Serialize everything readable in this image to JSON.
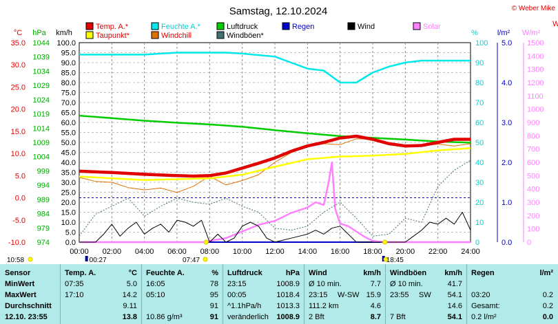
{
  "title": "Samstag, 12.10.2024",
  "brand": "© Weber Mike",
  "legend": [
    {
      "label": "Temp. A.*",
      "color": "#e00000",
      "text_color": "#e00000"
    },
    {
      "label": "Feuchte A.*",
      "color": "#00e8e8",
      "text_color": "#00d0d0"
    },
    {
      "label": "Luftdruck",
      "color": "#00cc00",
      "text_color": "#000000"
    },
    {
      "label": "Regen",
      "color": "#0000cc",
      "text_color": "#0000cc"
    },
    {
      "label": "Wind",
      "color": "#000000",
      "text_color": "#000000"
    },
    {
      "label": "Solar",
      "color": "#ff80ff",
      "text_color": "#ff80ff"
    },
    {
      "label": "Taupunkt*",
      "color": "#ffff00",
      "text_color": "#e00000"
    },
    {
      "label": "Windchill",
      "color": "#e07000",
      "text_color": "#e00000"
    },
    {
      "label": "Windböen*",
      "color": "#407070",
      "text_color": "#000000"
    }
  ],
  "axis_units": {
    "temp": "°C",
    "pressure": "hPa",
    "wind": "km/h",
    "humidity": "%",
    "rain": "l/m²",
    "solar": "W/m²",
    "right_edge": "W"
  },
  "axes": {
    "temp_ticks": [
      "35.0",
      "30.0",
      "25.0",
      "20.0",
      "15.0",
      "10.0",
      "5.0",
      "0.0",
      "-5.0",
      "-10.0"
    ],
    "pressure_ticks": [
      "1044",
      "1039",
      "1034",
      "1029",
      "1024",
      "1019",
      "1014",
      "1009",
      "1004",
      "999",
      "994",
      "989",
      "984",
      "979",
      "974"
    ],
    "wind_ticks": [
      "100.0",
      "95.0",
      "90.0",
      "85.0",
      "80.0",
      "75.0",
      "70.0",
      "65.0",
      "60.0",
      "55.0",
      "50.0",
      "45.0",
      "40.0",
      "35.0",
      "30.0",
      "25.0",
      "20.0",
      "15.0",
      "10.0",
      "5.0",
      "0.0"
    ],
    "humidity_ticks": [
      "100",
      "90",
      "80",
      "70",
      "60",
      "50",
      "40",
      "30",
      "20",
      "10",
      "0"
    ],
    "rain_ticks": [
      "5.0",
      "4.0",
      "3.0",
      "2.0",
      "1.0",
      "0.0"
    ],
    "solar_ticks": [
      "1500",
      "1400",
      "1300",
      "1200",
      "1100",
      "1000",
      "900",
      "800",
      "700",
      "600",
      "500",
      "400",
      "300",
      "200",
      "100",
      "0"
    ],
    "time_ticks": [
      "00:00",
      "02:00",
      "04:00",
      "06:00",
      "08:00",
      "10:00",
      "12:00",
      "14:00",
      "16:00",
      "18:00",
      "20:00",
      "22:00",
      "24:00"
    ]
  },
  "markers": {
    "sunrise": "07:47",
    "sunset": "18:45",
    "moonrise": "00:27",
    "moonset": "10:58"
  },
  "chart_data": {
    "type": "line",
    "x_unit": "hours",
    "xlim": [
      0,
      24
    ],
    "ylim_wind": [
      0,
      100
    ],
    "series": [
      {
        "name": "Temp. A.*",
        "axis": "temp",
        "x": [
          0,
          2,
          4,
          6,
          7,
          8,
          9,
          10,
          11,
          12,
          13,
          14,
          15,
          16,
          17,
          18,
          19,
          20,
          21,
          22,
          23,
          24
        ],
        "values": [
          6.0,
          5.7,
          5.3,
          5.0,
          4.9,
          5.0,
          5.6,
          6.7,
          7.8,
          9.0,
          10.5,
          11.7,
          12.5,
          13.5,
          13.9,
          13.2,
          12.2,
          11.7,
          11.8,
          12.5,
          13.2,
          13.2
        ]
      },
      {
        "name": "Feuchte A.*",
        "axis": "humidity",
        "x": [
          0,
          2,
          4,
          5,
          6,
          8,
          9,
          10,
          12,
          13,
          14,
          15,
          16,
          17,
          18,
          19,
          20,
          21,
          22,
          23,
          24
        ],
        "values": [
          94,
          94,
          94,
          94.5,
          95,
          95,
          95,
          94.5,
          93,
          90,
          87,
          86,
          80,
          80,
          85,
          88,
          90,
          91,
          91,
          91,
          91
        ]
      },
      {
        "name": "Luftdruck",
        "axis": "pressure",
        "x": [
          0,
          2,
          4,
          6,
          8,
          10,
          12,
          14,
          16,
          18,
          20,
          22,
          24
        ],
        "values": [
          1018.4,
          1017.5,
          1016.6,
          1015.9,
          1015.3,
          1014.5,
          1013.3,
          1012.2,
          1011.2,
          1010.6,
          1010.0,
          1009.3,
          1008.9
        ]
      },
      {
        "name": "Taupunkt*",
        "axis": "temp",
        "x": [
          0,
          2,
          4,
          6,
          8,
          10,
          12,
          14,
          16,
          18,
          20,
          22,
          24
        ],
        "values": [
          4.8,
          4.4,
          4.0,
          4.2,
          4.4,
          5.2,
          7.0,
          8.7,
          9.3,
          9.5,
          9.9,
          10.7,
          11.2
        ]
      },
      {
        "name": "Windchill",
        "axis": "temp",
        "x": [
          0,
          1,
          2,
          3,
          4,
          5,
          6,
          7,
          8,
          9,
          10,
          11,
          12,
          13,
          14,
          15,
          16,
          17,
          18,
          19,
          20,
          21,
          22,
          23,
          24
        ],
        "values": [
          4.6,
          3.7,
          3.5,
          2.3,
          1.8,
          2.2,
          1.2,
          2.6,
          4.9,
          2.9,
          3.9,
          5.2,
          8.0,
          10.2,
          11.5,
          12.2,
          12.0,
          13.3,
          13.2,
          12.1,
          11.6,
          11.8,
          12.1,
          11.7,
          12.2
        ]
      },
      {
        "name": "Wind",
        "axis": "wind",
        "x": [
          0,
          1,
          1.5,
          2,
          2.5,
          3,
          3.5,
          4,
          4.5,
          5,
          5.5,
          6,
          6.5,
          7,
          7.5,
          8,
          8.5,
          9,
          9.5,
          10,
          10.5,
          11,
          11.5,
          12,
          12.5,
          13,
          13.5,
          14,
          14.5,
          15,
          15.5,
          16,
          16.5,
          17,
          17.5,
          18,
          18.5,
          19,
          19.5,
          20,
          20.5,
          21,
          21.5,
          22,
          22.5,
          23,
          23.5,
          24
        ],
        "values": [
          0,
          0,
          4,
          9,
          3,
          7,
          10,
          4,
          7,
          9,
          5,
          11,
          10,
          8,
          11,
          0,
          4,
          0,
          2,
          8,
          10,
          8,
          2,
          0,
          1,
          2,
          3,
          4,
          6,
          4,
          7,
          8,
          4,
          0,
          0,
          0,
          0,
          0,
          0,
          0,
          3,
          6,
          10,
          9,
          12,
          9,
          15,
          6
        ]
      },
      {
        "name": "Windböen*",
        "axis": "wind",
        "x": [
          0,
          1,
          2,
          3,
          4,
          5,
          6,
          7,
          8,
          9,
          10,
          11,
          12,
          13,
          14,
          15,
          16,
          17,
          18,
          19,
          20,
          21,
          22,
          23,
          24
        ],
        "values": [
          3,
          14,
          18,
          22,
          13,
          18,
          22,
          20,
          19,
          22,
          18,
          15,
          7,
          6,
          8,
          15,
          20,
          12,
          3,
          4,
          12,
          10,
          28,
          36,
          41
        ]
      },
      {
        "name": "Solar",
        "axis": "solar",
        "x": [
          0,
          7.8,
          8,
          9,
          10,
          11,
          12,
          13,
          14,
          14.5,
          15,
          15.3,
          15.5,
          15.7,
          16,
          16.5,
          17,
          17.5,
          18,
          18.7,
          24
        ],
        "values": [
          0,
          0,
          10,
          30,
          80,
          130,
          160,
          220,
          260,
          300,
          280,
          450,
          600,
          250,
          140,
          120,
          80,
          40,
          10,
          0,
          0
        ]
      },
      {
        "name": "Regen",
        "axis": "rain",
        "x": [
          0,
          24
        ],
        "values": [
          0.0,
          0.0
        ]
      }
    ]
  },
  "stats": {
    "sensor": {
      "header": "Sensor",
      "rows": [
        "MinWert",
        "MaxWert",
        "Durchschnitt",
        "12.10. 23:55"
      ]
    },
    "temp": {
      "header": "Temp. A.",
      "unit": "°C",
      "col1": [
        "07:35",
        "17:10",
        "",
        ""
      ],
      "col2": [
        "5.0",
        "14.2",
        "9.11",
        "13.8"
      ]
    },
    "feuchte": {
      "header": "Feuchte A.",
      "unit": "%",
      "col1": [
        "16:05",
        "05:10",
        "",
        "10.86 g/m³"
      ],
      "col2": [
        "78",
        "95",
        "91",
        "91"
      ]
    },
    "luftdruck": {
      "header": "Luftdruck",
      "unit": "hPa",
      "col1": [
        "23:15",
        "00:05",
        "^1.1hPa/h",
        "veränderlich"
      ],
      "col2": [
        "1008.9",
        "1018.4",
        "1013.3",
        "1008.9"
      ]
    },
    "wind": {
      "header": "Wind",
      "unit": "km/h",
      "col1": [
        "Ø 10 min.",
        "23:15",
        "111.2 km",
        "2 Bft"
      ],
      "col1b": [
        "",
        "W-SW",
        "",
        ""
      ],
      "col2": [
        "7.7",
        "15.9",
        "4.6",
        "8.7"
      ]
    },
    "windboeen": {
      "header": "Windböen",
      "unit": "km/h",
      "col1": [
        "Ø 10 min.",
        "23:55",
        "",
        "7 Bft"
      ],
      "col1b": [
        "",
        "SW",
        "",
        ""
      ],
      "col2": [
        "41.7",
        "54.1",
        "14.6",
        "54.1"
      ]
    },
    "regen": {
      "header": "Regen",
      "unit": "l/m²",
      "col1": [
        "",
        "03:20",
        "Gesamt:",
        "0.2 l/m²"
      ],
      "col2": [
        "",
        "0.2",
        "0.2",
        "0.0"
      ]
    }
  }
}
